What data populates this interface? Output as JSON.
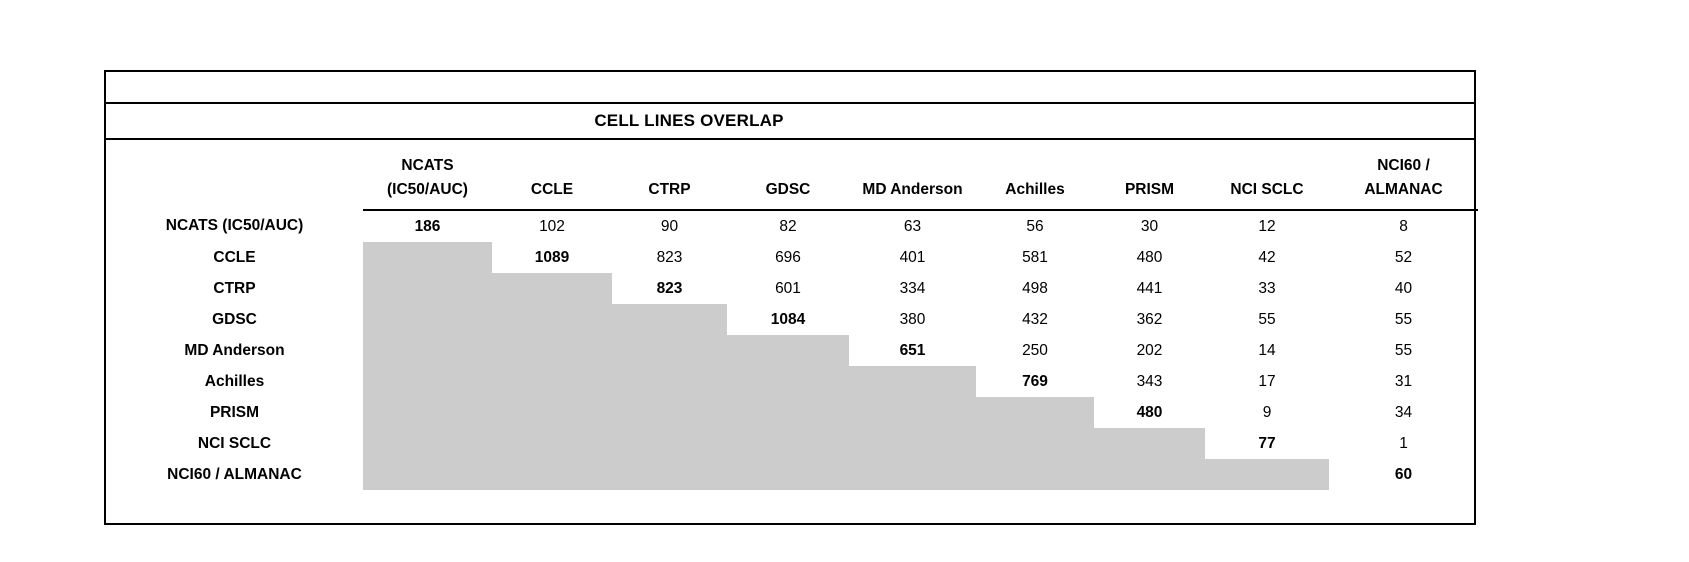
{
  "table": {
    "title": "CELL LINES OVERLAP",
    "columns": [
      [
        "NCATS",
        "(IC50/AUC)"
      ],
      [
        "CCLE"
      ],
      [
        "CTRP"
      ],
      [
        "GDSC"
      ],
      [
        "MD Anderson"
      ],
      [
        "Achilles"
      ],
      [
        "PRISM"
      ],
      [
        "NCI SCLC"
      ],
      [
        "NCI60 /",
        "ALMANAC"
      ]
    ],
    "rows": [
      {
        "label": "NCATS (IC50/AUC)",
        "values": [
          186,
          102,
          90,
          82,
          63,
          56,
          30,
          12,
          8
        ]
      },
      {
        "label": "CCLE",
        "values": [
          null,
          1089,
          823,
          696,
          401,
          581,
          480,
          42,
          52
        ]
      },
      {
        "label": "CTRP",
        "values": [
          null,
          null,
          823,
          601,
          334,
          498,
          441,
          33,
          40
        ]
      },
      {
        "label": "GDSC",
        "values": [
          null,
          null,
          null,
          1084,
          380,
          432,
          362,
          55,
          55
        ]
      },
      {
        "label": "MD Anderson",
        "values": [
          null,
          null,
          null,
          null,
          651,
          250,
          202,
          14,
          55
        ]
      },
      {
        "label": "Achilles",
        "values": [
          null,
          null,
          null,
          null,
          null,
          769,
          343,
          17,
          31
        ]
      },
      {
        "label": "PRISM",
        "values": [
          null,
          null,
          null,
          null,
          null,
          null,
          480,
          9,
          34
        ]
      },
      {
        "label": "NCI SCLC",
        "values": [
          null,
          null,
          null,
          null,
          null,
          null,
          null,
          77,
          1
        ]
      },
      {
        "label": "NCI60 / ALMANAC",
        "values": [
          null,
          null,
          null,
          null,
          null,
          null,
          null,
          null,
          60
        ]
      }
    ],
    "colors": {
      "shaded": "#cccccc",
      "border": "#000000",
      "text": "#000000",
      "background": "#ffffff"
    }
  },
  "chart_data": {
    "type": "table",
    "title": "CELL LINES OVERLAP",
    "row_labels": [
      "NCATS (IC50/AUC)",
      "CCLE",
      "CTRP",
      "GDSC",
      "MD Anderson",
      "Achilles",
      "PRISM",
      "NCI SCLC",
      "NCI60 / ALMANAC"
    ],
    "column_labels": [
      "NCATS (IC50/AUC)",
      "CCLE",
      "CTRP",
      "GDSC",
      "MD Anderson",
      "Achilles",
      "PRISM",
      "NCI SCLC",
      "NCI60 / ALMANAC"
    ],
    "matrix": [
      [
        186,
        102,
        90,
        82,
        63,
        56,
        30,
        12,
        8
      ],
      [
        null,
        1089,
        823,
        696,
        401,
        581,
        480,
        42,
        52
      ],
      [
        null,
        null,
        823,
        601,
        334,
        498,
        441,
        33,
        40
      ],
      [
        null,
        null,
        null,
        1084,
        380,
        432,
        362,
        55,
        55
      ],
      [
        null,
        null,
        null,
        null,
        651,
        250,
        202,
        14,
        55
      ],
      [
        null,
        null,
        null,
        null,
        null,
        769,
        343,
        17,
        31
      ],
      [
        null,
        null,
        null,
        null,
        null,
        null,
        480,
        9,
        34
      ],
      [
        null,
        null,
        null,
        null,
        null,
        null,
        null,
        77,
        1
      ],
      [
        null,
        null,
        null,
        null,
        null,
        null,
        null,
        null,
        60
      ]
    ],
    "notes": {
      "diagonal_values_bold": true,
      "lower_triangle_shaded_gray": true,
      "shaded_color": "#cccccc"
    },
    "legend_position": "none",
    "grid": false
  }
}
